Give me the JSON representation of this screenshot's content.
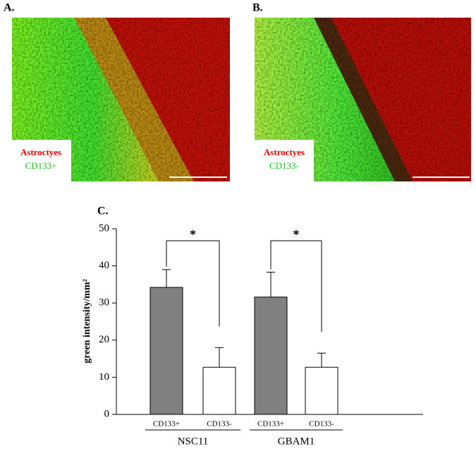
{
  "panels": [
    {
      "label": "A.",
      "legend": [
        "Astroctyes",
        "CD133+"
      ]
    },
    {
      "label": "B.",
      "legend": [
        "Astroctyes",
        "CD133-"
      ]
    }
  ],
  "chart_data": {
    "type": "bar",
    "panel_label": "C.",
    "ylabel": "green intensity/mm²",
    "categories": [
      "CD133+",
      "CD133-",
      "CD133+",
      "CD133-"
    ],
    "groups": [
      "NSC11",
      "GBAM1"
    ],
    "values": [
      34.2,
      12.7,
      31.6,
      12.7
    ],
    "errors": [
      4.8,
      5.3,
      6.7,
      3.8
    ],
    "colors": [
      "#808080",
      "#ffffff",
      "#808080",
      "#ffffff"
    ],
    "annotations": [
      "*",
      "*"
    ],
    "ylim": [
      0,
      50
    ],
    "yticks": [
      0,
      10,
      20,
      30,
      40,
      50
    ]
  }
}
